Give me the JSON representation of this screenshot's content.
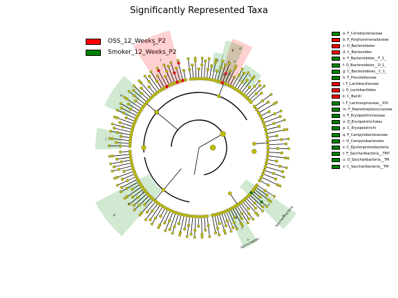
{
  "chart_data": {
    "type": "cladogram",
    "title": "Significantly Represented Taxa",
    "groups": [
      {
        "name": "OSS_12_Weeks_P2",
        "color": "#ff0000"
      },
      {
        "name": "Smoker_12_Weeks_P2",
        "color": "#008000"
      }
    ],
    "taxa_key": [
      {
        "label": "a: F_Coriobacteriaceae",
        "group": "Smoker_12_Weeks_P2"
      },
      {
        "label": "b: F_Porphyromonadaceae",
        "group": "OSS_12_Weeks_P2"
      },
      {
        "label": "c: O_Bacteroidales",
        "group": "OSS_12_Weeks_P2"
      },
      {
        "label": "d: C_Bacteroides",
        "group": "OSS_12_Weeks_P2"
      },
      {
        "label": "e: F_Bacteroidetes__F_1_",
        "group": "Smoker_12_Weeks_P2"
      },
      {
        "label": "f: O_Bacteroidetes__O_1_",
        "group": "Smoker_12_Weeks_P2"
      },
      {
        "label": "g: C_Bacteroidetes__C_1_",
        "group": "Smoker_12_Weeks_P2"
      },
      {
        "label": "h: F_Prevotellaceae",
        "group": "Smoker_12_Weeks_P2"
      },
      {
        "label": "i: F_Lactobacillaceae",
        "group": "OSS_12_Weeks_P2"
      },
      {
        "label": "j: O_Lactobacillales",
        "group": "OSS_12_Weeks_P2"
      },
      {
        "label": "k: C_Bacilli",
        "group": "OSS_12_Weeks_P2"
      },
      {
        "label": "l: F_Lachnospiraceae__XIV",
        "group": "Smoker_12_Weeks_P2"
      },
      {
        "label": "m: F_Peptostreptococcaceae",
        "group": "Smoker_12_Weeks_P2"
      },
      {
        "label": "n: F_Erysipelotrichaceae",
        "group": "Smoker_12_Weeks_P2"
      },
      {
        "label": "o: O_Erysipelotrichales",
        "group": "Smoker_12_Weeks_P2"
      },
      {
        "label": "p: C_Erysipelotrichi",
        "group": "Smoker_12_Weeks_P2"
      },
      {
        "label": "q: F_Campylobacteraceae",
        "group": "Smoker_12_Weeks_P2"
      },
      {
        "label": "r: O_Campylobacterales",
        "group": "Smoker_12_Weeks_P2"
      },
      {
        "label": "s: C_Epsilonproteobacteria",
        "group": "Smoker_12_Weeks_P2"
      },
      {
        "label": "t: F_Saccharibacteria__TM7",
        "group": "Smoker_12_Weeks_P2"
      },
      {
        "label": "u: O_Saccharibacteria__TM",
        "group": "Smoker_12_Weeks_P2"
      },
      {
        "label": "v: C_Saccharibacteria__TM",
        "group": "Smoker_12_Weeks_P2"
      }
    ],
    "sector_labels": [
      "a",
      "b",
      "c",
      "d",
      "e",
      "f",
      "g",
      "h",
      "i",
      "j",
      "k",
      "l",
      "m",
      "n",
      "o",
      "p",
      "q",
      "r",
      "s",
      "t",
      "u",
      "v",
      "Saccharibacteria",
      "Spirochaetes"
    ],
    "colors": {
      "neutral_node": "#bfbf00",
      "node_edge": "#555555",
      "branch": "#000000"
    }
  }
}
